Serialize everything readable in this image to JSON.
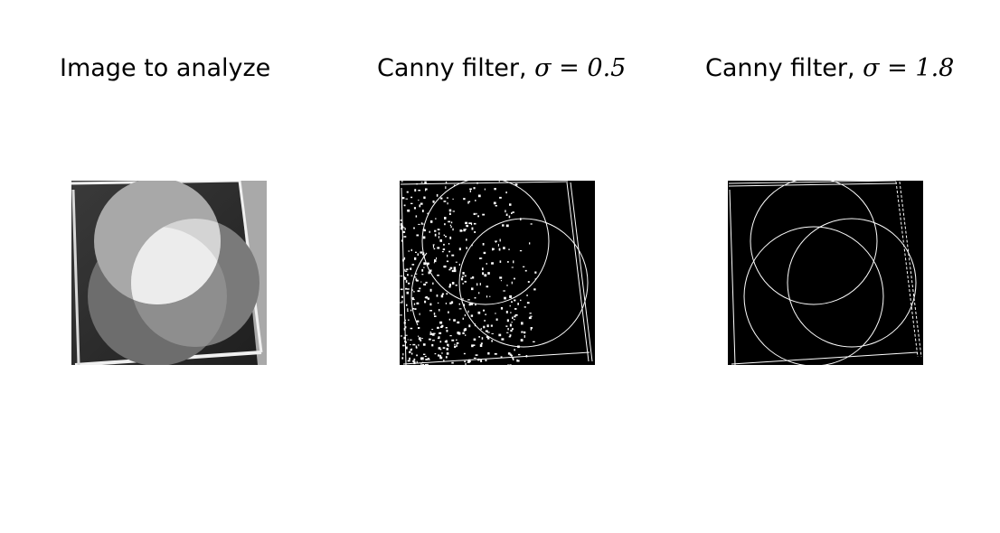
{
  "figure": {
    "panels": [
      {
        "title_prefix": "Image to analyze",
        "sigma_symbol": "",
        "sigma_equals": "",
        "sigma_value": ""
      },
      {
        "title_prefix": "Canny filter, ",
        "sigma_symbol": "σ",
        "sigma_equals": " = ",
        "sigma_value": "0.5"
      },
      {
        "title_prefix": "Canny filter, ",
        "sigma_symbol": "σ",
        "sigma_equals": " = ",
        "sigma_value": "1.8"
      }
    ]
  },
  "colors": {
    "background": "#ffffff",
    "edge_background": "#000000",
    "edge_stroke": "#ffffff"
  }
}
